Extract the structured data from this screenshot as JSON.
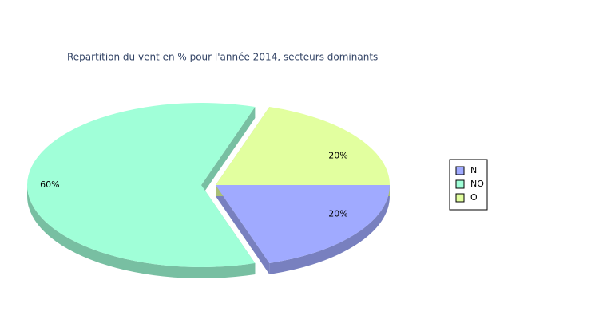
{
  "chart_data": {
    "type": "pie3d",
    "title": "Repartition du vent en % pour l'année 2014, secteurs dominants",
    "categories": [
      "N",
      "NO",
      "O"
    ],
    "values": [
      20,
      60,
      20
    ],
    "value_labels": [
      "20%",
      "60%",
      "20%"
    ],
    "colors": [
      "#a0aaff",
      "#a0ffd8",
      "#e2ff9f"
    ],
    "legend": "right"
  }
}
